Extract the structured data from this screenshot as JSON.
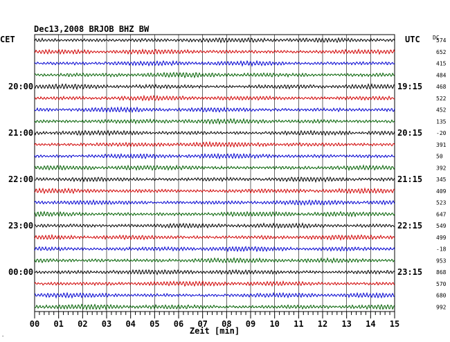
{
  "chart_data": {
    "type": "line",
    "title": "Dec13,2008   BRJOB BHZ BW",
    "left_label": "CET",
    "right_label": "UTC",
    "dc_label": "DC",
    "xlabel": "Zeit [min]",
    "x_ticks": [
      "00",
      "01",
      "02",
      "03",
      "04",
      "05",
      "06",
      "07",
      "08",
      "09",
      "10",
      "11",
      "12",
      "13",
      "14",
      "15"
    ],
    "xlim": [
      0,
      15
    ],
    "left_time_labels": [
      {
        "trace": 4,
        "text": "20:00"
      },
      {
        "trace": 8,
        "text": "21:00"
      },
      {
        "trace": 12,
        "text": "22:00"
      },
      {
        "trace": 16,
        "text": "23:00"
      },
      {
        "trace": 20,
        "text": "00:00"
      }
    ],
    "right_time_labels": [
      {
        "trace": 4,
        "text": "19:15"
      },
      {
        "trace": 8,
        "text": "20:15"
      },
      {
        "trace": 12,
        "text": "21:15"
      },
      {
        "trace": 16,
        "text": "22:15"
      },
      {
        "trace": 20,
        "text": "23:15"
      }
    ],
    "dc_values": [
      "574",
      "652",
      "415",
      "484",
      "468",
      "522",
      "452",
      "135",
      "-20",
      "391",
      "50",
      "392",
      "345",
      "409",
      "523",
      "647",
      "549",
      "499",
      "-18",
      "953",
      "868",
      "570",
      "680",
      "992"
    ],
    "series_colors": [
      "#000000",
      "#d00000",
      "#0000d0",
      "#006000"
    ],
    "grid": true,
    "traces": 24
  }
}
